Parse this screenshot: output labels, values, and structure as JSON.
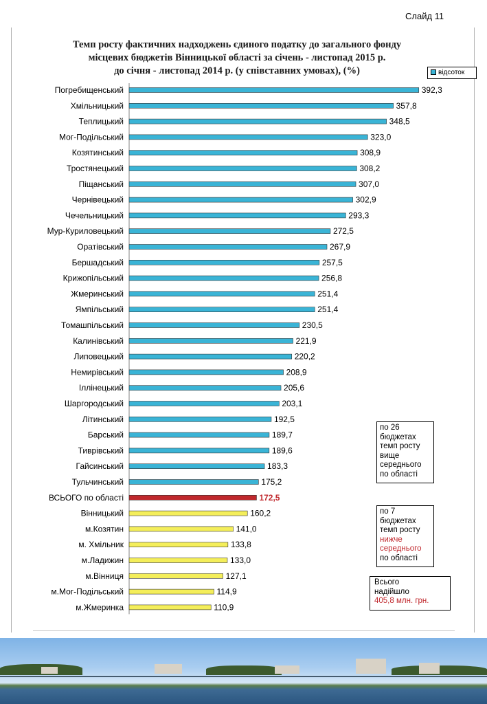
{
  "slide_label": "Слайд 11",
  "chart_data": {
    "type": "bar",
    "orientation": "horizontal",
    "title": [
      "Темп росту фактичних надходжень єдиного податку до загального фонду",
      "місцевих бюджетів Вінницької області за січень - листопад 2015 р.",
      "до січня - листопад 2014 р.  (у співставних умовах),  (%)"
    ],
    "legend": {
      "label": "відсоток",
      "placement": "top-right"
    },
    "categories": [
      "Погребищенський",
      "Хмільницький",
      "Теплицький",
      "Мог-Подільський",
      "Козятинський",
      "Тростянецький",
      "Піщанський",
      "Чернівецький",
      "Чечельницький",
      "Мур-Куриловецький",
      "Оратівський",
      "Бершадський",
      "Крижопільський",
      "Жмеринський",
      "Ямпільський",
      "Томашпільський",
      "Калинівський",
      "Липовецький",
      "Немирівський",
      "Іллінецький",
      "Шаргородський",
      "Літинський",
      "Барський",
      "Тиврівський",
      "Гайсинський",
      "Тульчинський",
      "ВСЬОГО по області",
      "Вінницький",
      "м.Козятин",
      "м. Хмільник",
      "м.Ладижин",
      "м.Вінниця",
      "м.Мог-Подільський",
      "м.Жмеринка"
    ],
    "values": [
      392.3,
      357.8,
      348.5,
      323.0,
      308.9,
      308.2,
      307.0,
      302.9,
      293.3,
      272.5,
      267.9,
      257.5,
      256.8,
      251.4,
      251.4,
      230.5,
      221.9,
      220.2,
      208.9,
      205.6,
      203.1,
      192.5,
      189.7,
      189.6,
      183.3,
      175.2,
      172.5,
      160.2,
      141.0,
      133.8,
      133.0,
      127.1,
      114.9,
      110.9
    ],
    "value_labels": [
      "392,3",
      "357,8",
      "348,5",
      "323,0",
      "308,9",
      "308,2",
      "307,0",
      "302,9",
      "293,3",
      "272,5",
      "267,9",
      "257,5",
      "256,8",
      "251,4",
      "251,4",
      "230,5",
      "221,9",
      "220,2",
      "208,9",
      "205,6",
      "203,1",
      "192,5",
      "189,7",
      "189,6",
      "183,3",
      "175,2",
      "172,5",
      "160,2",
      "141,0",
      "133,8",
      "133,0",
      "127,1",
      "114,9",
      "110,9"
    ],
    "xlim": [
      0,
      400
    ],
    "grid": false,
    "colors": {
      "above": "#3ab4d6",
      "total": "#c0282d",
      "below": "#f4ee5a"
    },
    "total_index": 26
  },
  "notes": {
    "above": {
      "lines": [
        "по 26",
        "бюджетах",
        "темп росту",
        "вище",
        "середнього",
        "по області"
      ]
    },
    "below": {
      "lines_plain_top": [
        "по 7",
        "бюджетах",
        "темп росту"
      ],
      "lines_red": [
        "нижче",
        "середнього"
      ],
      "lines_plain_bottom": [
        "по області"
      ]
    },
    "total": {
      "line1": "Всього",
      "line2": "надійшло",
      "line3": "405,8 млн. грн."
    }
  }
}
